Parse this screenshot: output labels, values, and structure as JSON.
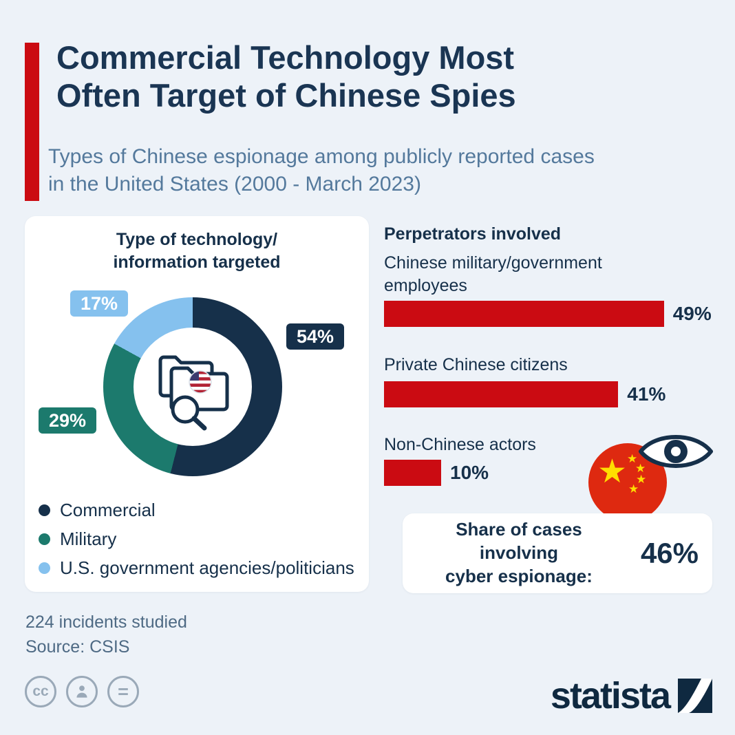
{
  "palette": {
    "background": "#edf2f8",
    "accent_red": "#cb0b12",
    "navy": "#16304a",
    "teal": "#1c7a6d",
    "light_blue": "#85c1ee",
    "slate": "#54799c"
  },
  "header": {
    "title_line1": "Commercial Technology Most",
    "title_line2": "Often Target of Chinese Spies",
    "subtitle_line1": "Types of Chinese espionage among publicly reported cases",
    "subtitle_line2": "in the United States (2000 - March 2023)"
  },
  "chart_data": [
    {
      "type": "pie",
      "subtype": "donut",
      "title_line1": "Type of technology/",
      "title_line2": "information targeted",
      "labels": [
        "Commercial",
        "Military",
        "U.S. government agencies/politicians"
      ],
      "values": [
        54,
        29,
        17
      ],
      "value_labels": [
        "54%",
        "29%",
        "17%"
      ],
      "colors": [
        "#16304a",
        "#1c7a6d",
        "#85c1ee"
      ],
      "legend_position": "bottom-left"
    },
    {
      "type": "bar",
      "orientation": "horizontal",
      "title": "Perpetrators involved",
      "categories": [
        "Chinese military/government employees",
        "Private Chinese citizens",
        "Non-Chinese actors"
      ],
      "values": [
        49,
        41,
        10
      ],
      "value_labels": [
        "49%",
        "41%",
        "10%"
      ],
      "bar_color": "#cb0b12",
      "xlim": [
        0,
        49
      ]
    }
  ],
  "cyber_card": {
    "label_line1": "Share of cases involving",
    "label_line2": "cyber espionage:",
    "value": "46%"
  },
  "footnotes": {
    "incidents": "224 incidents studied",
    "source": "Source: CSIS"
  },
  "license": {
    "cc_text": "cc",
    "equals_text": "="
  },
  "brand": {
    "logo_text": "statista"
  }
}
